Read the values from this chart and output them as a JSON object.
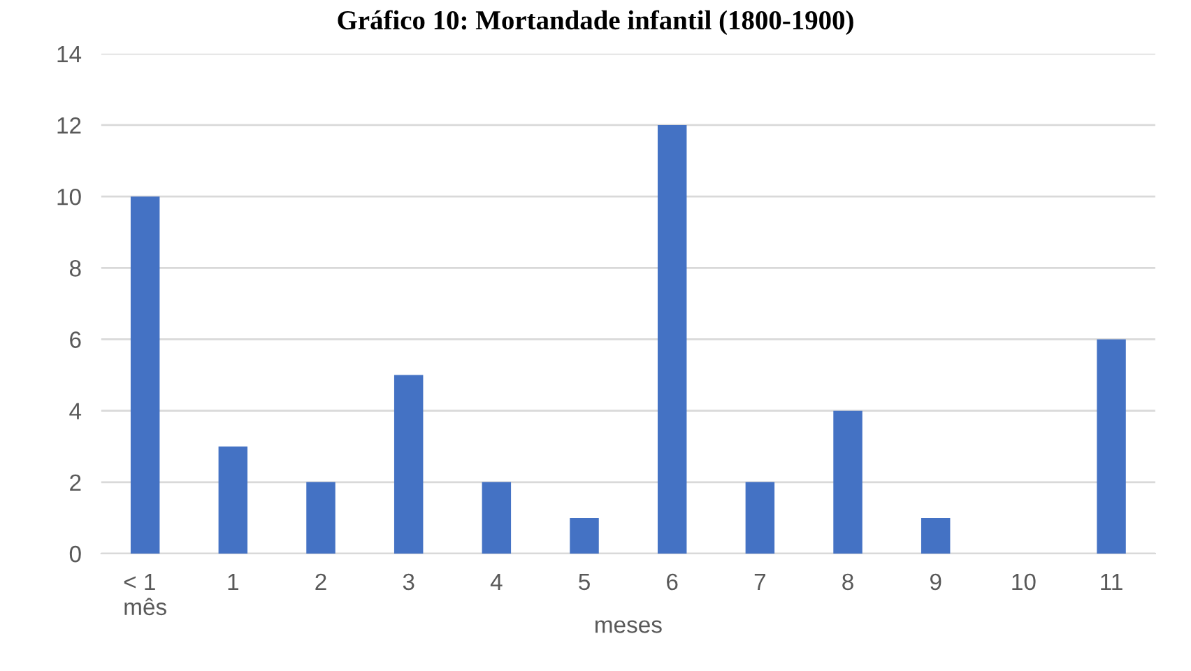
{
  "chart_data": {
    "type": "bar",
    "title": "Gráfico 10: Mortandade infantil (1800-1900)",
    "xlabel": "meses",
    "categories": [
      "< 1\nmês",
      "1",
      "2",
      "3",
      "4",
      "5",
      "6",
      "7",
      "8",
      "9",
      "10",
      "11"
    ],
    "values": [
      10,
      3,
      2,
      5,
      2,
      1,
      12,
      2,
      4,
      1,
      0,
      6
    ],
    "color": "#4472c4",
    "ylim": [
      0,
      14
    ],
    "yticks": [
      0,
      2,
      4,
      6,
      8,
      10,
      12,
      14
    ],
    "grid": "y",
    "legend": false
  }
}
